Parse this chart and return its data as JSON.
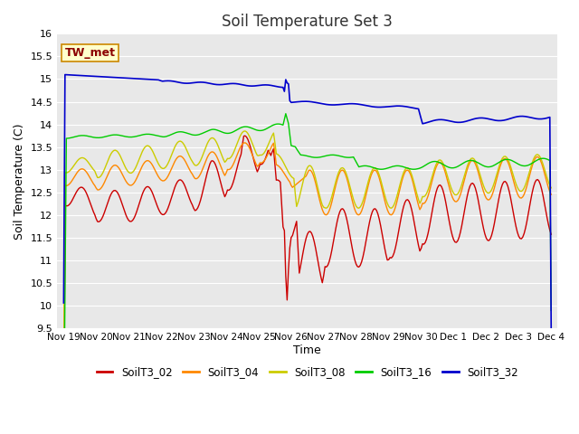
{
  "title": "Soil Temperature Set 3",
  "xlabel": "Time",
  "ylabel": "Soil Temperature (C)",
  "ylim": [
    9.5,
    16.0
  ],
  "bg_color": "#ffffff",
  "plot_bg_color": "#e8e8e8",
  "grid_color": "white",
  "annotation_label": "TW_met",
  "annotation_color": "#8B0000",
  "annotation_bg": "#ffffcc",
  "annotation_border": "#cc8800",
  "series": [
    {
      "name": "SoilT3_02",
      "color": "#cc0000",
      "linewidth": 1.0
    },
    {
      "name": "SoilT3_04",
      "color": "#ff8800",
      "linewidth": 1.0
    },
    {
      "name": "SoilT3_08",
      "color": "#cccc00",
      "linewidth": 1.0
    },
    {
      "name": "SoilT3_16",
      "color": "#00cc00",
      "linewidth": 1.0
    },
    {
      "name": "SoilT3_32",
      "color": "#0000cc",
      "linewidth": 1.2
    }
  ],
  "xtick_labels": [
    "Nov 19",
    "Nov 20",
    "Nov 21",
    "Nov 22",
    "Nov 23",
    "Nov 24",
    "Nov 25",
    "Nov 26",
    "Nov 27",
    "Nov 28",
    "Nov 29",
    "Nov 30",
    "Dec 1",
    "Dec 2",
    "Dec 3",
    "Dec 4"
  ],
  "xtick_positions": [
    0,
    1,
    2,
    3,
    4,
    5,
    6,
    7,
    8,
    9,
    10,
    11,
    12,
    13,
    14,
    15
  ],
  "ytick_positions": [
    9.5,
    10.0,
    10.5,
    11.0,
    11.5,
    12.0,
    12.5,
    13.0,
    13.5,
    14.0,
    14.5,
    15.0,
    15.5,
    16.0
  ]
}
